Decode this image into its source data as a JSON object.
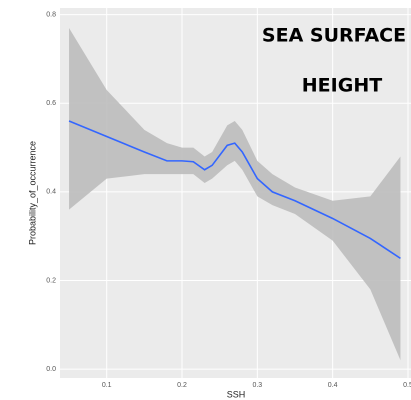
{
  "chart_data": {
    "type": "line",
    "x_label": "SSH",
    "y_label": "Probability_of_occurrence",
    "annotations": [
      "SEA SURFACE",
      "HEIGHT"
    ],
    "x": [
      0.05,
      0.1,
      0.15,
      0.18,
      0.2,
      0.215,
      0.23,
      0.24,
      0.26,
      0.27,
      0.28,
      0.3,
      0.32,
      0.35,
      0.4,
      0.45,
      0.49
    ],
    "series": [
      {
        "color": "#3366ff",
        "values": [
          0.56,
          0.525,
          0.49,
          0.47,
          0.47,
          0.468,
          0.45,
          0.46,
          0.505,
          0.51,
          0.49,
          0.43,
          0.4,
          0.38,
          0.34,
          0.295,
          0.25
        ]
      }
    ],
    "band": {
      "color": "#bdbdbd",
      "lower": [
        0.36,
        0.43,
        0.44,
        0.44,
        0.44,
        0.44,
        0.42,
        0.43,
        0.46,
        0.47,
        0.45,
        0.39,
        0.37,
        0.35,
        0.29,
        0.18,
        0.02
      ],
      "upper": [
        0.77,
        0.63,
        0.54,
        0.51,
        0.5,
        0.5,
        0.48,
        0.49,
        0.55,
        0.56,
        0.54,
        0.47,
        0.44,
        0.41,
        0.38,
        0.39,
        0.48
      ]
    },
    "xlim": [
      0.038,
      0.504
    ],
    "ylim": [
      -0.02,
      0.815
    ],
    "xticks": [
      0.1,
      0.2,
      0.3,
      0.4,
      0.5
    ],
    "yticks": [
      {
        "value": 0,
        "label": "0.0"
      },
      0.2,
      0.4,
      0.6,
      0.8
    ],
    "grid": true
  }
}
